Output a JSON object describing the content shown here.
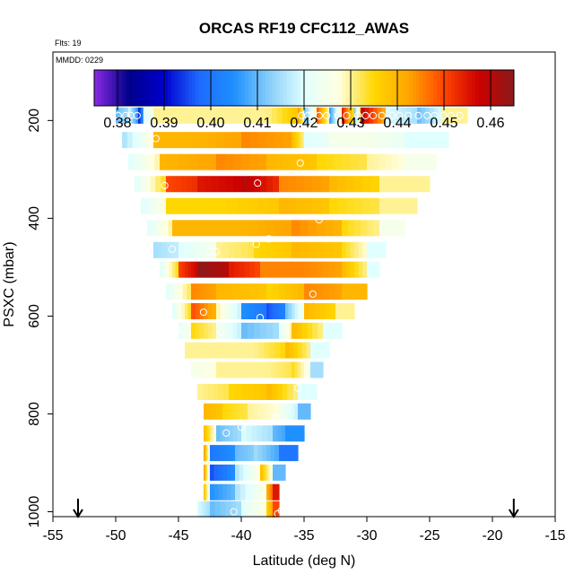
{
  "chart_data": {
    "type": "heatmap",
    "title": "ORCAS RF19 CFC112_AWAS",
    "annotation_flts": "Flts: 19",
    "annotation_mmdd": "MMDD: 0229",
    "xlabel": "Latitude (deg N)",
    "ylabel": "PSXC (mbar)",
    "xlim": [
      -55,
      -15
    ],
    "ylim": [
      1010,
      60
    ],
    "y_inverted": true,
    "x_ticks": [
      -55,
      -50,
      -45,
      -40,
      -35,
      -30,
      -25,
      -20,
      -15
    ],
    "x_tick_labels": [
      "-55",
      "-50",
      "-45",
      "-40",
      "-35",
      "-30",
      "-25",
      "-20",
      "-15"
    ],
    "y_ticks": [
      200,
      400,
      600,
      800,
      1000
    ],
    "y_tick_labels": [
      "200",
      "400",
      "600",
      "800",
      "1000"
    ],
    "colorbar": {
      "range": [
        0.375,
        0.465
      ],
      "ticks": [
        0.38,
        0.39,
        0.4,
        0.41,
        0.42,
        0.43,
        0.44,
        0.45,
        0.46
      ],
      "tick_labels": [
        "0.38",
        "0.39",
        "0.40",
        "0.41",
        "0.42",
        "0.43",
        "0.44",
        "0.45",
        "0.46"
      ],
      "colors": [
        "#8a2be2",
        "#00008b",
        "#0000cd",
        "#1e6aff",
        "#1e90ff",
        "#87cefa",
        "#e0ffff",
        "#ffffe0",
        "#ffd700",
        "#ffa500",
        "#ff4500",
        "#cc0000",
        "#8b1a1a"
      ]
    },
    "flight_track_arrows_lat": [
      -53,
      -18.3
    ],
    "pressure_bands": [
      {
        "p": 190,
        "lat_min": -50.0,
        "lat_max": -22.0,
        "segments": [
          [
            -50.0,
            0.41
          ],
          [
            -49.0,
            0.42
          ],
          [
            -48.2,
            0.39
          ],
          [
            -47.8,
            0.42
          ],
          [
            -47.0,
            0.43
          ],
          [
            -42.0,
            0.43
          ],
          [
            -38.0,
            0.43
          ],
          [
            -35.5,
            0.445
          ],
          [
            -35.0,
            0.41
          ],
          [
            -34.0,
            0.45
          ],
          [
            -33.0,
            0.405
          ],
          [
            -32.0,
            0.455
          ],
          [
            -31.0,
            0.41
          ],
          [
            -30.5,
            0.46
          ],
          [
            -28.5,
            0.42
          ],
          [
            -26.0,
            0.41
          ],
          [
            -24.0,
            0.43
          ]
        ]
      },
      {
        "p": 240,
        "lat_min": -49.5,
        "lat_max": -23.5,
        "segments": [
          [
            -49.5,
            0.415
          ],
          [
            -47.0,
            0.44
          ],
          [
            -44.0,
            0.44
          ],
          [
            -40.0,
            0.445
          ],
          [
            -36.0,
            0.44
          ],
          [
            -35.0,
            0.42
          ],
          [
            -33.0,
            0.425
          ],
          [
            -30.0,
            0.425
          ],
          [
            -27.0,
            0.42
          ]
        ]
      },
      {
        "p": 285,
        "lat_min": -49.0,
        "lat_max": -24.5,
        "segments": [
          [
            -49.0,
            0.42
          ],
          [
            -46.5,
            0.44
          ],
          [
            -42.0,
            0.445
          ],
          [
            -38.0,
            0.44
          ],
          [
            -34.0,
            0.435
          ],
          [
            -30.0,
            0.43
          ],
          [
            -27.0,
            0.425
          ]
        ]
      },
      {
        "p": 330,
        "lat_min": -48.5,
        "lat_max": -25.0,
        "segments": [
          [
            -48.5,
            0.42
          ],
          [
            -46.0,
            0.45
          ],
          [
            -43.5,
            0.455
          ],
          [
            -40.0,
            0.46
          ],
          [
            -37.0,
            0.445
          ],
          [
            -33.0,
            0.44
          ],
          [
            -29.0,
            0.43
          ]
        ]
      },
      {
        "p": 375,
        "lat_min": -48.0,
        "lat_max": -26.0,
        "segments": [
          [
            -48.0,
            0.42
          ],
          [
            -46.0,
            0.435
          ],
          [
            -42.0,
            0.435
          ],
          [
            -37.0,
            0.44
          ],
          [
            -33.0,
            0.435
          ],
          [
            -29.0,
            0.43
          ]
        ]
      },
      {
        "p": 420,
        "lat_min": -47.5,
        "lat_max": -27.0,
        "segments": [
          [
            -47.5,
            0.42
          ],
          [
            -45.5,
            0.44
          ],
          [
            -40.0,
            0.44
          ],
          [
            -36.0,
            0.445
          ],
          [
            -32.0,
            0.435
          ],
          [
            -29.0,
            0.425
          ]
        ]
      },
      {
        "p": 465,
        "lat_min": -47.0,
        "lat_max": -28.5,
        "segments": [
          [
            -47.0,
            0.415
          ],
          [
            -45.0,
            0.42
          ],
          [
            -42.0,
            0.43
          ],
          [
            -39.0,
            0.435
          ],
          [
            -36.0,
            0.44
          ],
          [
            -32.0,
            0.435
          ],
          [
            -30.0,
            0.42
          ]
        ]
      },
      {
        "p": 505,
        "lat_min": -46.5,
        "lat_max": -29.0,
        "segments": [
          [
            -46.5,
            0.42
          ],
          [
            -45.0,
            0.45
          ],
          [
            -43.5,
            0.465
          ],
          [
            -41.0,
            0.455
          ],
          [
            -38.5,
            0.445
          ],
          [
            -35.0,
            0.445
          ],
          [
            -32.0,
            0.44
          ],
          [
            -30.0,
            0.42
          ]
        ]
      },
      {
        "p": 550,
        "lat_min": -46.0,
        "lat_max": -30.0,
        "segments": [
          [
            -46.0,
            0.42
          ],
          [
            -44.0,
            0.445
          ],
          [
            -42.0,
            0.44
          ],
          [
            -38.0,
            0.435
          ],
          [
            -35.0,
            0.445
          ],
          [
            -32.0,
            0.44
          ]
        ]
      },
      {
        "p": 590,
        "lat_min": -45.5,
        "lat_max": -31.0,
        "segments": [
          [
            -45.5,
            0.42
          ],
          [
            -44.0,
            0.45
          ],
          [
            -42.0,
            0.43
          ],
          [
            -40.0,
            0.405
          ],
          [
            -38.0,
            0.395
          ],
          [
            -36.5,
            0.41
          ],
          [
            -35.0,
            0.44
          ],
          [
            -32.5,
            0.43
          ]
        ]
      },
      {
        "p": 630,
        "lat_min": -45.0,
        "lat_max": -32.0,
        "segments": [
          [
            -45.0,
            0.42
          ],
          [
            -44.0,
            0.435
          ],
          [
            -42.0,
            0.425
          ],
          [
            -40.0,
            0.41
          ],
          [
            -37.0,
            0.42
          ],
          [
            -36.0,
            0.44
          ],
          [
            -33.5,
            0.42
          ]
        ]
      },
      {
        "p": 670,
        "lat_min": -44.5,
        "lat_max": -33.0,
        "segments": [
          [
            -44.5,
            0.43
          ],
          [
            -42.0,
            0.43
          ],
          [
            -39.0,
            0.43
          ],
          [
            -36.5,
            0.44
          ],
          [
            -34.5,
            0.42
          ]
        ]
      },
      {
        "p": 710,
        "lat_min": -44.0,
        "lat_max": -33.5,
        "segments": [
          [
            -44.0,
            0.425
          ],
          [
            -42.0,
            0.43
          ],
          [
            -38.0,
            0.43
          ],
          [
            -36.0,
            0.435
          ],
          [
            -34.5,
            0.415
          ]
        ]
      },
      {
        "p": 755,
        "lat_min": -43.5,
        "lat_max": -34.0,
        "segments": [
          [
            -43.5,
            0.43
          ],
          [
            -41.0,
            0.435
          ],
          [
            -38.0,
            0.44
          ],
          [
            -35.5,
            0.42
          ]
        ]
      },
      {
        "p": 795,
        "lat_min": -43.0,
        "lat_max": -34.5,
        "segments": [
          [
            -43.0,
            0.44
          ],
          [
            -41.5,
            0.435
          ],
          [
            -39.5,
            0.43
          ],
          [
            -37.0,
            0.425
          ],
          [
            -35.5,
            0.41
          ]
        ]
      },
      {
        "p": 840,
        "lat_min": -43.0,
        "lat_max": -35.0,
        "segments": [
          [
            -43.0,
            0.44
          ],
          [
            -42.0,
            0.41
          ],
          [
            -40.0,
            0.42
          ],
          [
            -37.5,
            0.41
          ],
          [
            -36.5,
            0.405
          ]
        ]
      },
      {
        "p": 880,
        "lat_min": -43.0,
        "lat_max": -35.5,
        "segments": [
          [
            -43.0,
            0.445
          ],
          [
            -42.5,
            0.4
          ],
          [
            -40.5,
            0.41
          ],
          [
            -39.0,
            0.415
          ],
          [
            -37.0,
            0.4
          ]
        ]
      },
      {
        "p": 920,
        "lat_min": -43.0,
        "lat_max": -36.5,
        "segments": [
          [
            -43.0,
            0.445
          ],
          [
            -42.5,
            0.395
          ],
          [
            -40.5,
            0.415
          ],
          [
            -38.5,
            0.44
          ],
          [
            -37.5,
            0.41
          ]
        ]
      },
      {
        "p": 960,
        "lat_min": -43.0,
        "lat_max": -37.0,
        "segments": [
          [
            -43.0,
            0.44
          ],
          [
            -42.5,
            0.405
          ],
          [
            -40.5,
            0.415
          ],
          [
            -38.0,
            0.44
          ],
          [
            -37.5,
            0.455
          ]
        ]
      },
      {
        "p": 995,
        "lat_min": -43.5,
        "lat_max": -37.0,
        "segments": [
          [
            -43.5,
            0.42
          ],
          [
            -42.5,
            0.41
          ],
          [
            -40.0,
            0.42
          ],
          [
            -38.0,
            0.435
          ],
          [
            -37.5,
            0.45
          ]
        ]
      }
    ],
    "sample_points": [
      [
        -49.8,
        190
      ],
      [
        -49.2,
        190
      ],
      [
        -48.8,
        190
      ],
      [
        -48.3,
        190
      ],
      [
        -35.2,
        190
      ],
      [
        -34.7,
        190
      ],
      [
        -33.8,
        190
      ],
      [
        -33.2,
        190
      ],
      [
        -32.3,
        190
      ],
      [
        -31.6,
        190
      ],
      [
        -30.7,
        190
      ],
      [
        -30.1,
        190
      ],
      [
        -29.5,
        190
      ],
      [
        -28.8,
        190
      ],
      [
        -28.0,
        190
      ],
      [
        -27.4,
        190
      ],
      [
        -26.7,
        190
      ],
      [
        -25.9,
        190
      ],
      [
        -25.2,
        190
      ],
      [
        -24.6,
        190
      ],
      [
        -23.9,
        190
      ],
      [
        -23.3,
        190
      ],
      [
        -22.6,
        190
      ],
      [
        -46.8,
        237
      ],
      [
        -35.3,
        287
      ],
      [
        -46.1,
        333
      ],
      [
        -38.7,
        328
      ],
      [
        -33.8,
        403
      ],
      [
        -37.8,
        442
      ],
      [
        -38.8,
        453
      ],
      [
        -45.5,
        463
      ],
      [
        -42.5,
        468
      ],
      [
        -42.0,
        468
      ],
      [
        -34.3,
        555
      ],
      [
        -43.0,
        592
      ],
      [
        -38.5,
        603
      ],
      [
        -44.7,
        628
      ],
      [
        -41.6,
        632
      ],
      [
        -35.5,
        747
      ],
      [
        -43.5,
        797
      ],
      [
        -37.3,
        808
      ],
      [
        -40.0,
        827
      ],
      [
        -41.2,
        839
      ],
      [
        -43.8,
        1000
      ],
      [
        -40.6,
        1000
      ],
      [
        -36.8,
        998
      ],
      [
        -37.1,
        1004
      ]
    ]
  }
}
